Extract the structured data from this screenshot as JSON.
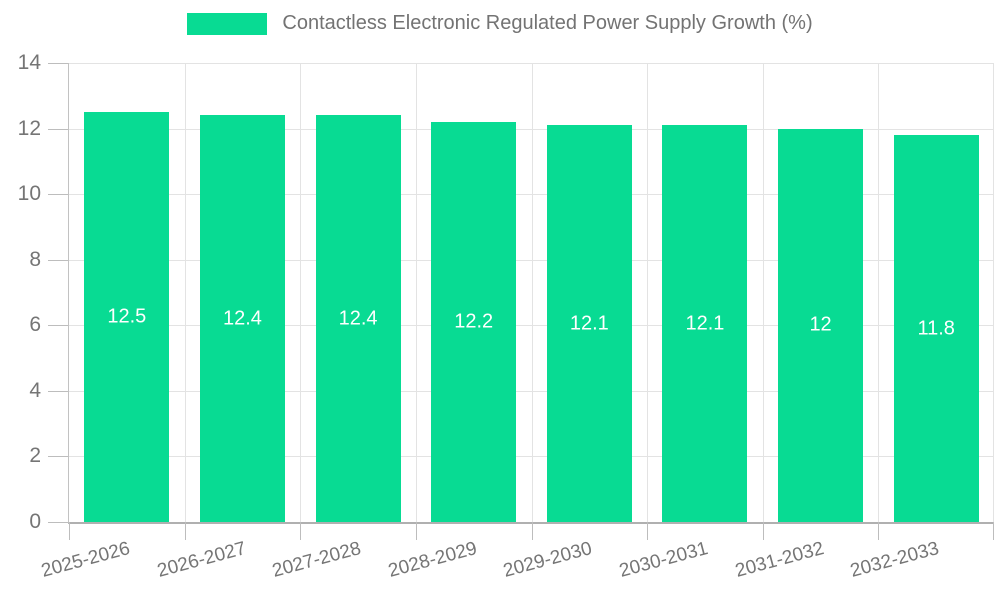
{
  "chart_data": {
    "type": "bar",
    "title": "Contactless Electronic Regulated Power Supply Growth (%)",
    "categories": [
      "2025-2026",
      "2026-2027",
      "2027-2028",
      "2028-2029",
      "2029-2030",
      "2030-2031",
      "2031-2032",
      "2032-2033"
    ],
    "values": [
      12.5,
      12.4,
      12.4,
      12.2,
      12.1,
      12.1,
      12,
      11.8
    ],
    "bar_labels": [
      "12.5",
      "12.4",
      "12.4",
      "12.2",
      "12.1",
      "12.1",
      "12",
      "11.8"
    ],
    "xlabel": "",
    "ylabel": "",
    "ylim": [
      0,
      14
    ],
    "yticks": [
      0,
      2,
      4,
      6,
      8,
      10,
      12,
      14
    ],
    "grid": true,
    "legend_position": "top-center",
    "x_label_rotation_deg": -15,
    "colors": {
      "bar": "#08DB93",
      "bar_value_text": "#ffffff",
      "axis_text": "#757575",
      "grid_line": "#e3e3e3",
      "axis_line": "#b0b0b0",
      "background": "#ffffff"
    }
  }
}
